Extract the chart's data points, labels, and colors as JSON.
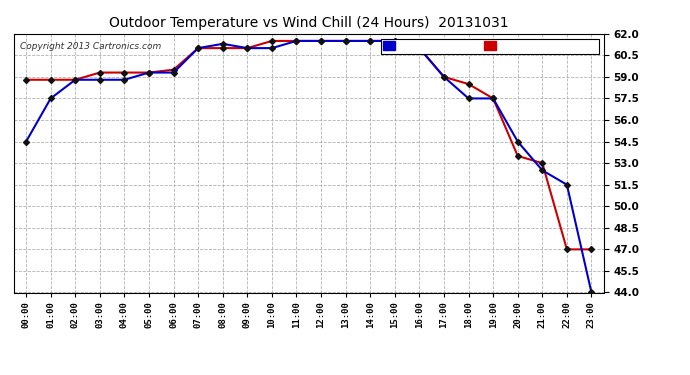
{
  "title": "Outdoor Temperature vs Wind Chill (24 Hours)  20131031",
  "copyright": "Copyright 2013 Cartronics.com",
  "x_labels": [
    "00:00",
    "01:00",
    "02:00",
    "03:00",
    "04:00",
    "05:00",
    "06:00",
    "07:00",
    "08:00",
    "09:00",
    "10:00",
    "11:00",
    "12:00",
    "13:00",
    "14:00",
    "15:00",
    "16:00",
    "17:00",
    "18:00",
    "19:00",
    "20:00",
    "21:00",
    "22:00",
    "23:00"
  ],
  "temperature": [
    58.8,
    58.8,
    58.8,
    59.3,
    59.3,
    59.3,
    59.5,
    61.0,
    61.0,
    61.0,
    61.5,
    61.5,
    61.5,
    61.5,
    61.5,
    61.5,
    61.0,
    59.0,
    58.5,
    57.5,
    53.5,
    53.0,
    47.0,
    47.0
  ],
  "wind_chill": [
    54.5,
    57.5,
    58.8,
    58.8,
    58.8,
    59.3,
    59.3,
    61.0,
    61.3,
    61.0,
    61.0,
    61.5,
    61.5,
    61.5,
    61.5,
    61.5,
    61.0,
    59.0,
    57.5,
    57.5,
    54.5,
    52.5,
    51.5,
    44.0
  ],
  "ylim": [
    44.0,
    62.0
  ],
  "yticks": [
    44.0,
    45.5,
    47.0,
    48.5,
    50.0,
    51.5,
    53.0,
    54.5,
    56.0,
    57.5,
    59.0,
    60.5,
    62.0
  ],
  "temp_color": "#cc0000",
  "wind_color": "#0000cc",
  "bg_color": "#ffffff",
  "plot_bg_color": "#ffffff",
  "grid_color": "#aaaaaa",
  "legend_wind_bg": "#0000cc",
  "legend_temp_bg": "#cc0000",
  "legend_text_color": "#ffffff"
}
